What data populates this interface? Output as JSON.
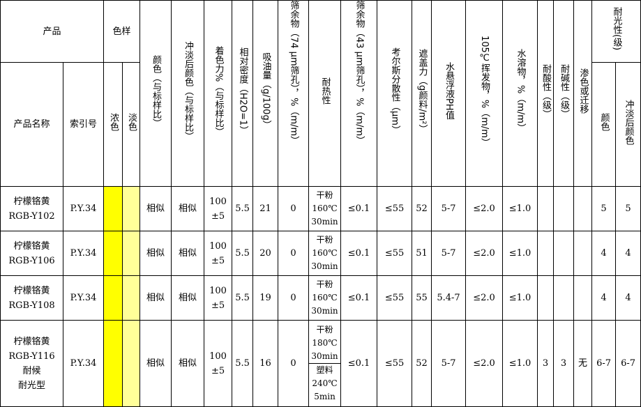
{
  "colors": {
    "deep_swatch": "#ffff00",
    "light_swatch": "#ffff99"
  },
  "header": {
    "product": "产品",
    "swatch": "色样",
    "product_name": "产品名称",
    "index_no": "索引号",
    "deep": "浓色",
    "light": "淡色",
    "color": "颜色（与标样比）",
    "tint_color": "冲淡后颜色（与标样比）",
    "tint_strength": "着色力%（与标样比）",
    "density": "相对密度（H2O=1）",
    "oil": "吸油量（g/100g）",
    "sieve74": "筛余物（74 μm筛孔），%（m/m）",
    "heat": "耐热性",
    "sieve43": "筛余物（43 μm筛孔），%（m/m）",
    "hegman": "考尔斯分散性（μm）",
    "hiding": "遮盖力（g颜料/m²）",
    "ph": "水悬浮液PH值",
    "volatile": "105℃挥发物，%（m/m）",
    "water_sol": "水溶物，%（m/m）",
    "acid": "耐酸性（级）",
    "alkali": "耐碱性（级）",
    "bleed": "渗色或迁移",
    "light_fast": "耐光性(级)",
    "lf_color": "颜色",
    "lf_tint": "冲淡后颜色"
  },
  "rows": [
    {
      "name": [
        "柠檬铬黄",
        "RGB-Y102"
      ],
      "index": "P.Y.34",
      "color": "相似",
      "tint_color": "相似",
      "strength": [
        "100",
        "±5"
      ],
      "density": "5.5",
      "oil": "21",
      "sieve74": "0",
      "heat": [
        [
          "干粉",
          "160℃",
          "30min"
        ]
      ],
      "sieve43": "≤0.1",
      "hegman": "≤55",
      "hiding": "52",
      "ph": "5-7",
      "volatile": "≤2.0",
      "water_sol": "≤1.0",
      "acid": "",
      "alkali": "",
      "bleed": "",
      "lf_color": "5",
      "lf_tint": "5"
    },
    {
      "name": [
        "柠檬铬黄",
        "RGB-Y106"
      ],
      "index": "P.Y.34",
      "color": "相似",
      "tint_color": "相似",
      "strength": [
        "100",
        "±5"
      ],
      "density": "5.5",
      "oil": "20",
      "sieve74": "0",
      "heat": [
        [
          "干粉",
          "160℃",
          "30min"
        ]
      ],
      "sieve43": "≤0.1",
      "hegman": "≤55",
      "hiding": "51",
      "ph": "5-7",
      "volatile": "≤2.0",
      "water_sol": "≤1.0",
      "acid": "",
      "alkali": "",
      "bleed": "",
      "lf_color": "4",
      "lf_tint": "4"
    },
    {
      "name": [
        "柠檬铬黄",
        "RGB-Y108"
      ],
      "index": "P.Y.34",
      "color": "相似",
      "tint_color": "相似",
      "strength": [
        "100",
        "±5"
      ],
      "density": "5.5",
      "oil": "19",
      "sieve74": "0",
      "heat": [
        [
          "干粉",
          "160℃",
          "30min"
        ]
      ],
      "sieve43": "≤0.1",
      "hegman": "≤55",
      "hiding": "55",
      "ph": "5.4-7",
      "volatile": "≤2.0",
      "water_sol": "≤1.0",
      "acid": "",
      "alkali": "",
      "bleed": "",
      "lf_color": "4",
      "lf_tint": "4"
    },
    {
      "name": [
        "柠檬铬黄",
        "RGB-Y116",
        "耐候",
        "耐光型"
      ],
      "index": "P.Y.34",
      "color": "相似",
      "tint_color": "相似",
      "strength": [
        "100",
        "±5"
      ],
      "density": "5.5",
      "oil": "16",
      "sieve74": "0",
      "heat": [
        [
          "干粉",
          "180℃",
          "30min"
        ],
        [
          "塑料",
          "240℃",
          "5min"
        ]
      ],
      "sieve43": "≤0.1",
      "hegman": "≤55",
      "hiding": "52",
      "ph": "5-7",
      "volatile": "≤2.0",
      "water_sol": "≤1.0",
      "acid": "3",
      "alkali": "3",
      "bleed": "无",
      "lf_color": "6-7",
      "lf_tint": "6-7"
    }
  ]
}
